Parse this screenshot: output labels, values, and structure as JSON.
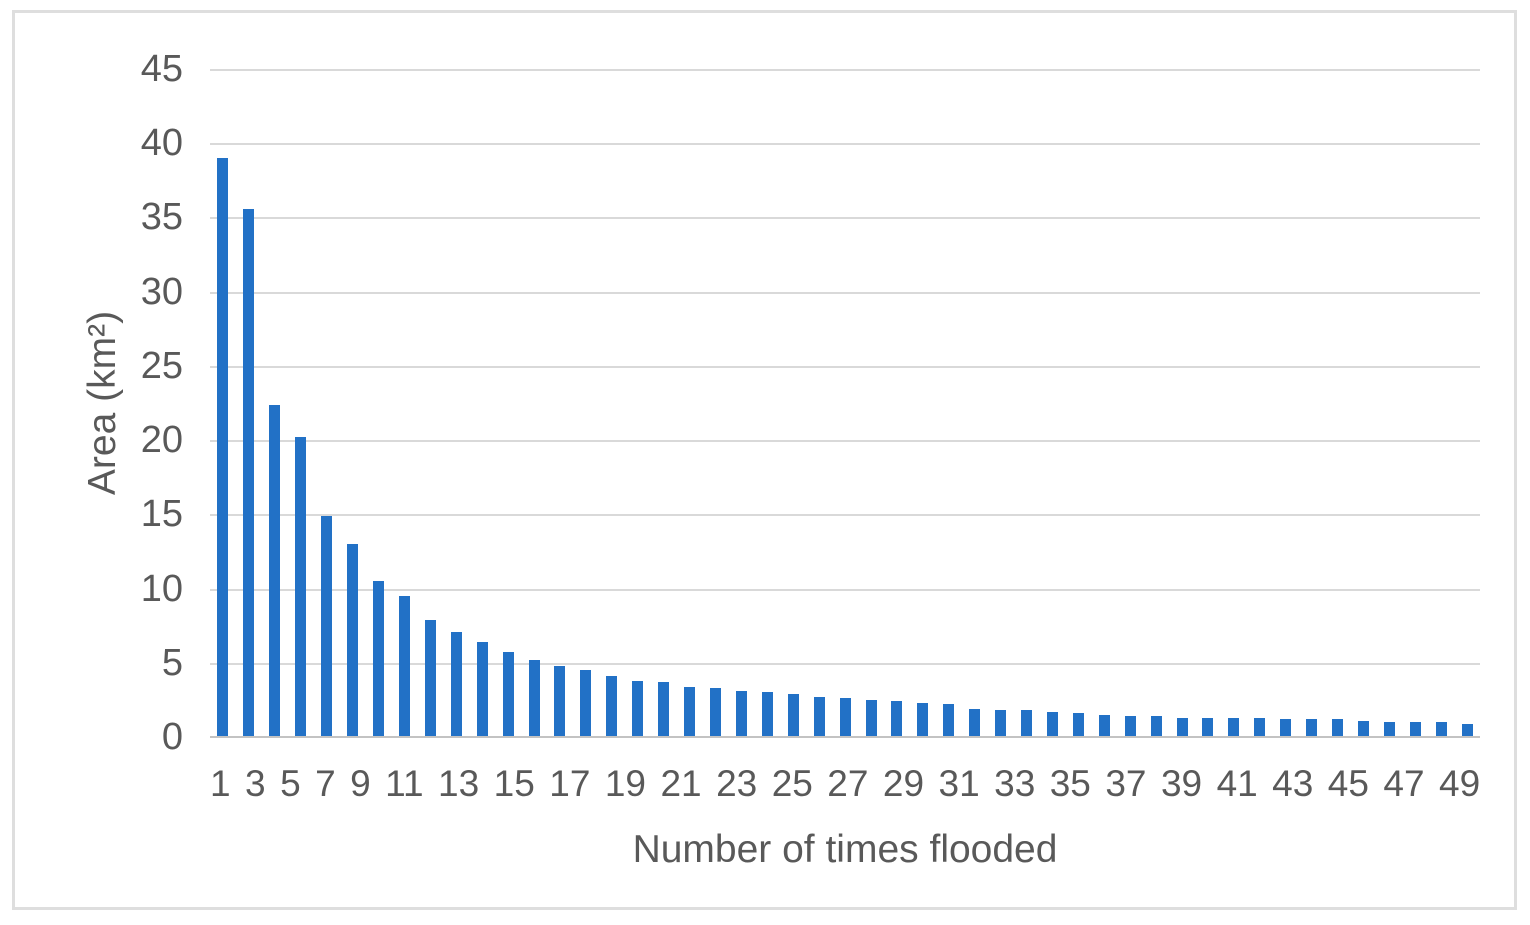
{
  "figure": {
    "background": "#ffffff",
    "border_color": "#dedede"
  },
  "chart_data": {
    "type": "bar",
    "title": "",
    "xlabel": "Number of times flooded",
    "ylabel": "Area (km²)",
    "categories": [
      1,
      2,
      3,
      4,
      5,
      6,
      7,
      8,
      9,
      10,
      11,
      12,
      13,
      14,
      15,
      16,
      17,
      18,
      19,
      20,
      21,
      22,
      23,
      24,
      25,
      26,
      27,
      28,
      29,
      30,
      31,
      32,
      33,
      34,
      35,
      36,
      37,
      38,
      39,
      40,
      41,
      42,
      43,
      44,
      45,
      46,
      47,
      48,
      49
    ],
    "values": [
      39.0,
      35.6,
      22.4,
      20.2,
      14.9,
      13.0,
      10.5,
      9.5,
      7.9,
      7.1,
      6.4,
      5.7,
      5.2,
      4.8,
      4.5,
      4.1,
      3.8,
      3.7,
      3.4,
      3.3,
      3.1,
      3.0,
      2.9,
      2.7,
      2.6,
      2.5,
      2.4,
      2.3,
      2.2,
      1.9,
      1.8,
      1.8,
      1.7,
      1.6,
      1.5,
      1.4,
      1.4,
      1.3,
      1.3,
      1.3,
      1.3,
      1.2,
      1.2,
      1.2,
      1.1,
      1.0,
      1.0,
      1.0,
      0.9
    ],
    "x_tick_labels_shown": [
      "1",
      "3",
      "5",
      "7",
      "9",
      "11",
      "13",
      "15",
      "17",
      "19",
      "21",
      "23",
      "25",
      "27",
      "29",
      "31",
      "33",
      "35",
      "37",
      "39",
      "41",
      "43",
      "45",
      "47",
      "49"
    ],
    "x_tick_step": 2,
    "ylim": [
      0,
      45
    ],
    "y_tick_step": 5,
    "y_tick_labels": [
      "0",
      "5",
      "10",
      "15",
      "20",
      "25",
      "30",
      "35",
      "40",
      "45"
    ],
    "grid": "horizontal",
    "legend_position": "none",
    "colors": {
      "bar": "#2271c6",
      "gridline": "#d9d9d9",
      "axis_line": "#c3c3c3",
      "text": "#595959"
    }
  }
}
